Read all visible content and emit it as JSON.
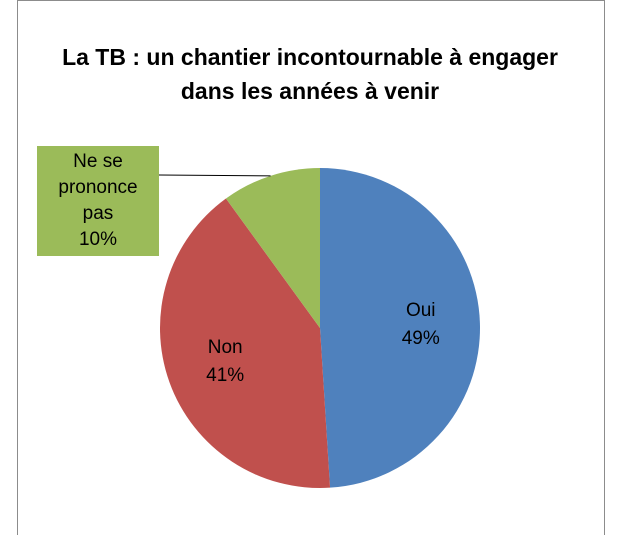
{
  "chart_data": {
    "type": "pie",
    "title": "La TB : un chantier incontournable à engager dans les années à venir",
    "categories": [
      "Oui",
      "Non",
      "Ne se prononce pas"
    ],
    "values": [
      49,
      41,
      10
    ],
    "value_labels": [
      "49%",
      "41%",
      "10%"
    ],
    "colors": [
      "#4f81bd",
      "#c0504d",
      "#9bbb59"
    ]
  }
}
